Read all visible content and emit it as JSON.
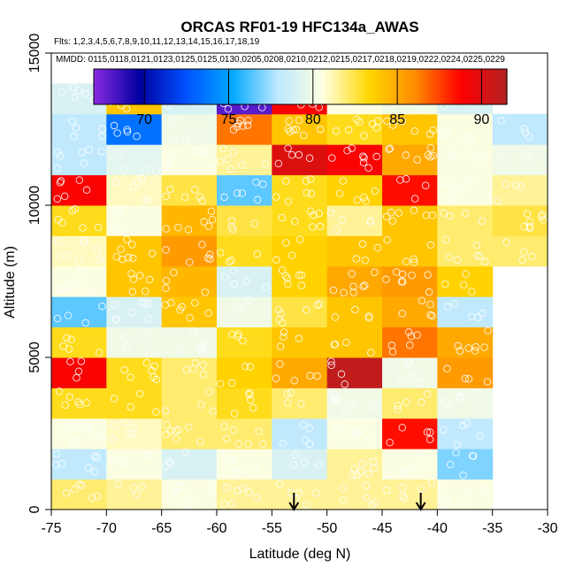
{
  "chart_data": {
    "type": "heatmap",
    "title": "ORCAS RF01-19 HFC134a_AWAS",
    "flights_label": "Flts: 1,2,3,4,5,6,7,8,9,10,11,12,13,14,15,16,17,18,19",
    "mmdd_label": "MMDD: 0115,0118,0121,0123,0125,0125,0130,0205,0208,0210,0212,0215,0217,0218,0219,0222,0224,0225,0229",
    "xlabel": "Latitude (deg N)",
    "ylabel": "Altitude (m)",
    "xlim": [
      -75,
      -30
    ],
    "ylim": [
      0,
      15000
    ],
    "xticks": [
      -75,
      -70,
      -65,
      -60,
      -55,
      -50,
      -45,
      -40,
      -35,
      -30
    ],
    "yticks": [
      0,
      5000,
      10000,
      15000
    ],
    "colorbar": {
      "min": 67,
      "max": 91.5,
      "ticks": [
        70,
        75,
        80,
        85,
        90
      ],
      "colors": [
        "#8a2be2",
        "#0000a0",
        "#0050ff",
        "#00a8ff",
        "#bde8ff",
        "#ffffe0",
        "#ffd700",
        "#ff8c00",
        "#ff0000",
        "#b22222"
      ]
    },
    "lat_bins": [
      -75,
      -70,
      -65,
      -60,
      -55,
      -50,
      -45,
      -40,
      -35,
      -30
    ],
    "alt_bin_size": 1000,
    "grid_values": [
      [
        82,
        81.5,
        80.5,
        81.5,
        81.5,
        81.5,
        81.5,
        80.5,
        null
      ],
      [
        78,
        80.5,
        79,
        80.5,
        79,
        81.5,
        80.5,
        77,
        null
      ],
      [
        80.5,
        81,
        82,
        82,
        78,
        80.5,
        88.5,
        78,
        null
      ],
      [
        83,
        83,
        82,
        83,
        82,
        80,
        82,
        80,
        null
      ],
      [
        89,
        83,
        82,
        83.5,
        85,
        91,
        80,
        85.5,
        null
      ],
      [
        83,
        80,
        80,
        83,
        84,
        84,
        86.5,
        85,
        null
      ],
      [
        76.5,
        79,
        84,
        80,
        82.5,
        84,
        85,
        78,
        null
      ],
      [
        80.5,
        84,
        84.5,
        79,
        83.5,
        85,
        85.5,
        83.5,
        null
      ],
      [
        81,
        84,
        85.5,
        83,
        83.5,
        84,
        84,
        82,
        82
      ],
      [
        83,
        80.5,
        84.5,
        82.5,
        83,
        81.5,
        84,
        82,
        82.5
      ],
      [
        89,
        81,
        82.5,
        76.5,
        83,
        83.5,
        88.5,
        80.5,
        81.5
      ],
      [
        78,
        79.5,
        80.5,
        81.5,
        90,
        89,
        85,
        80.5,
        80
      ],
      [
        78,
        73.5,
        80,
        86.5,
        84,
        83,
        84,
        80.5,
        78
      ],
      [
        79,
        84,
        79,
        68,
        89,
        80.5,
        80,
        79,
        null
      ]
    ],
    "arrows_lat": [
      -53,
      -41.5
    ]
  }
}
